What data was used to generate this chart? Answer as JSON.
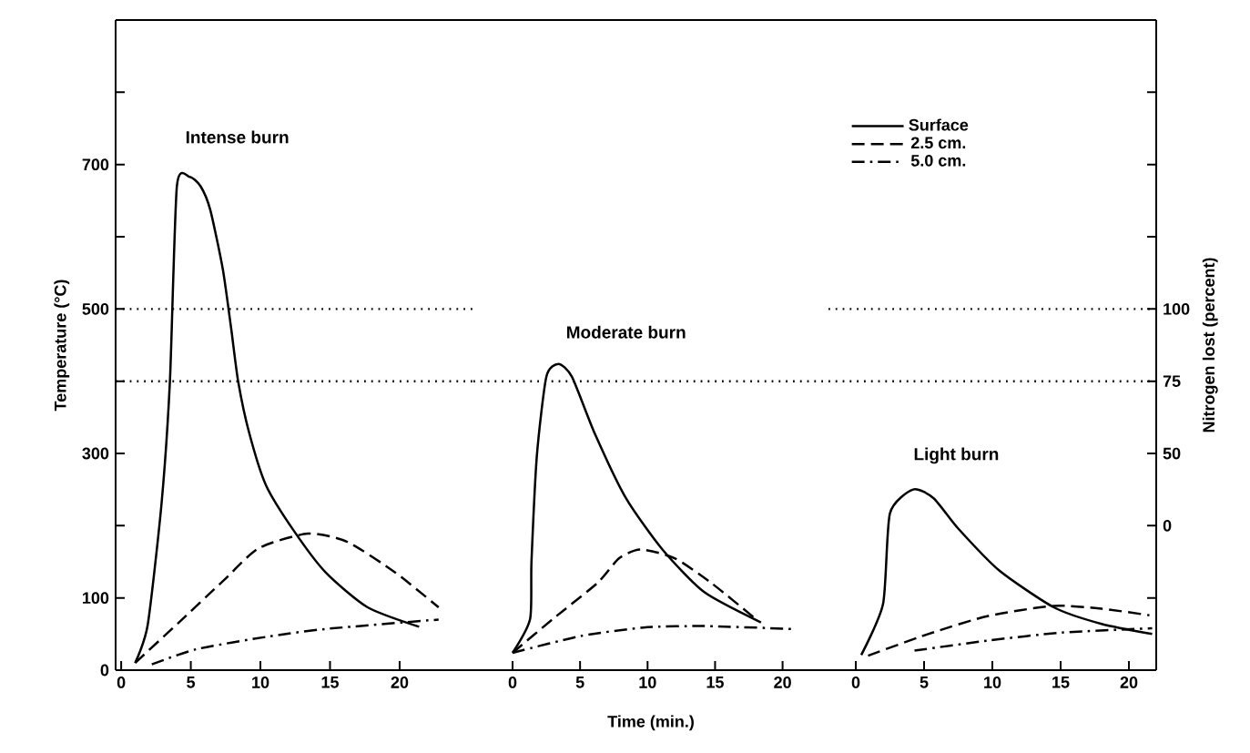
{
  "chart_data": [
    {
      "type": "line",
      "title": "Intense burn",
      "ylabel": "Temperature (°C)",
      "xlim": [
        -0.4,
        25.3
      ],
      "xticks": [
        0,
        5,
        10,
        15,
        20
      ],
      "ylim": [
        0,
        900
      ],
      "yticks": [
        0,
        100,
        {
          "value": 200,
          "label": null
        },
        300,
        {
          "value": 400,
          "label": null
        },
        500,
        {
          "value": 600,
          "label": null
        },
        700,
        {
          "value": 800,
          "label": null
        }
      ],
      "ref_lines": [
        {
          "axis": "y",
          "value": 500,
          "line_style": "dotted"
        },
        {
          "axis": "y",
          "value": 400,
          "line_style": "dotted"
        }
      ],
      "series": [
        {
          "color": "#000000",
          "line_style": "solid",
          "x": [
            1,
            1.9,
            2.9,
            3.5,
            4.0,
            4.9,
            5.7,
            6.4,
            7.3,
            7.9,
            8.4,
            9.2,
            10.4,
            12.4,
            14.7,
            17.7,
            21.4
          ],
          "values": [
            10,
            62,
            231,
            400,
            670,
            683,
            670,
            637,
            555,
            473,
            400,
            328,
            256,
            193,
            135,
            87,
            60
          ]
        },
        {
          "color": "#000000",
          "line_style": "dashed",
          "x": [
            1,
            4.2,
            7.4,
            9.9,
            13.4,
            16.2,
            19.7,
            22.8
          ],
          "values": [
            10,
            67,
            125,
            169,
            189,
            178,
            135,
            87
          ]
        },
        {
          "color": "#000000",
          "line_style": "dashdot",
          "x": [
            2.2,
            5.4,
            10.4,
            14.7,
            22.8
          ],
          "values": [
            8,
            29,
            46,
            57,
            70
          ]
        }
      ]
    },
    {
      "type": "line",
      "title": "Moderate burn",
      "xlabel": "Time (min.)",
      "xlim": [
        -2.9,
        23.4
      ],
      "xticks": [
        0,
        5,
        10,
        15,
        20
      ],
      "ylim": [
        0,
        900
      ],
      "tick_labels": "x",
      "ref_lines": [
        {
          "axis": "y",
          "value": 400,
          "line_style": "dotted"
        }
      ],
      "series": [
        {
          "color": "#000000",
          "line_style": "solid",
          "x": [
            0,
            1.3,
            1.4,
            1.8,
            2.5,
            3.4,
            4.4,
            6.1,
            8.4,
            11.1,
            14.2,
            18.4
          ],
          "values": [
            24,
            71,
            150,
            297,
            406,
            424,
            406,
            327,
            238,
            167,
            108,
            66
          ]
        },
        {
          "color": "#000000",
          "line_style": "dashed",
          "x": [
            0,
            3.0,
            6.3,
            7.9,
            9.5,
            12.0,
            14.7,
            18.0
          ],
          "values": [
            24,
            71,
            121,
            155,
            167,
            155,
            121,
            71
          ]
        },
        {
          "color": "#000000",
          "line_style": "dashdot",
          "x": [
            0,
            5.0,
            9.7,
            14.2,
            20.7
          ],
          "values": [
            24,
            47,
            59,
            61,
            57
          ]
        }
      ]
    },
    {
      "type": "line",
      "title": "Light burn",
      "y2label": "Nitrogen lost (percent)",
      "xlim": [
        -2.0,
        22
      ],
      "xticks": [
        0,
        5,
        10,
        15,
        20
      ],
      "ylim": [
        0,
        900
      ],
      "tick_labels": "x",
      "y2_categories": [
        null,
        null,
        null,
        "100",
        "75",
        "50",
        "0",
        null
      ],
      "ref_lines": [
        {
          "axis": "y",
          "value": 500,
          "line_style": "dotted"
        },
        {
          "axis": "y",
          "value": 400,
          "line_style": "dotted"
        }
      ],
      "legend": "top left",
      "series": [
        {
          "name": "Surface",
          "color": "#000000",
          "line_style": "solid",
          "x": [
            0.4,
            2.0,
            2.5,
            4.2,
            5.7,
            7.5,
            10.5,
            14.5,
            18.0,
            21.7
          ],
          "values": [
            21,
            92,
            217,
            250,
            238,
            196,
            138,
            87,
            64,
            50
          ]
        },
        {
          "name": "2.5 cm.",
          "color": "#000000",
          "line_style": "dashed",
          "x": [
            0.9,
            5.3,
            9.7,
            14.5,
            18.0,
            21.5
          ],
          "values": [
            20,
            50,
            75,
            89,
            85,
            76
          ]
        },
        {
          "name": "5.0 cm.",
          "color": "#000000",
          "line_style": "dashdot",
          "x": [
            4.3,
            9.7,
            15.1,
            21.7
          ],
          "values": [
            27,
            41,
            52,
            58
          ]
        }
      ]
    }
  ]
}
